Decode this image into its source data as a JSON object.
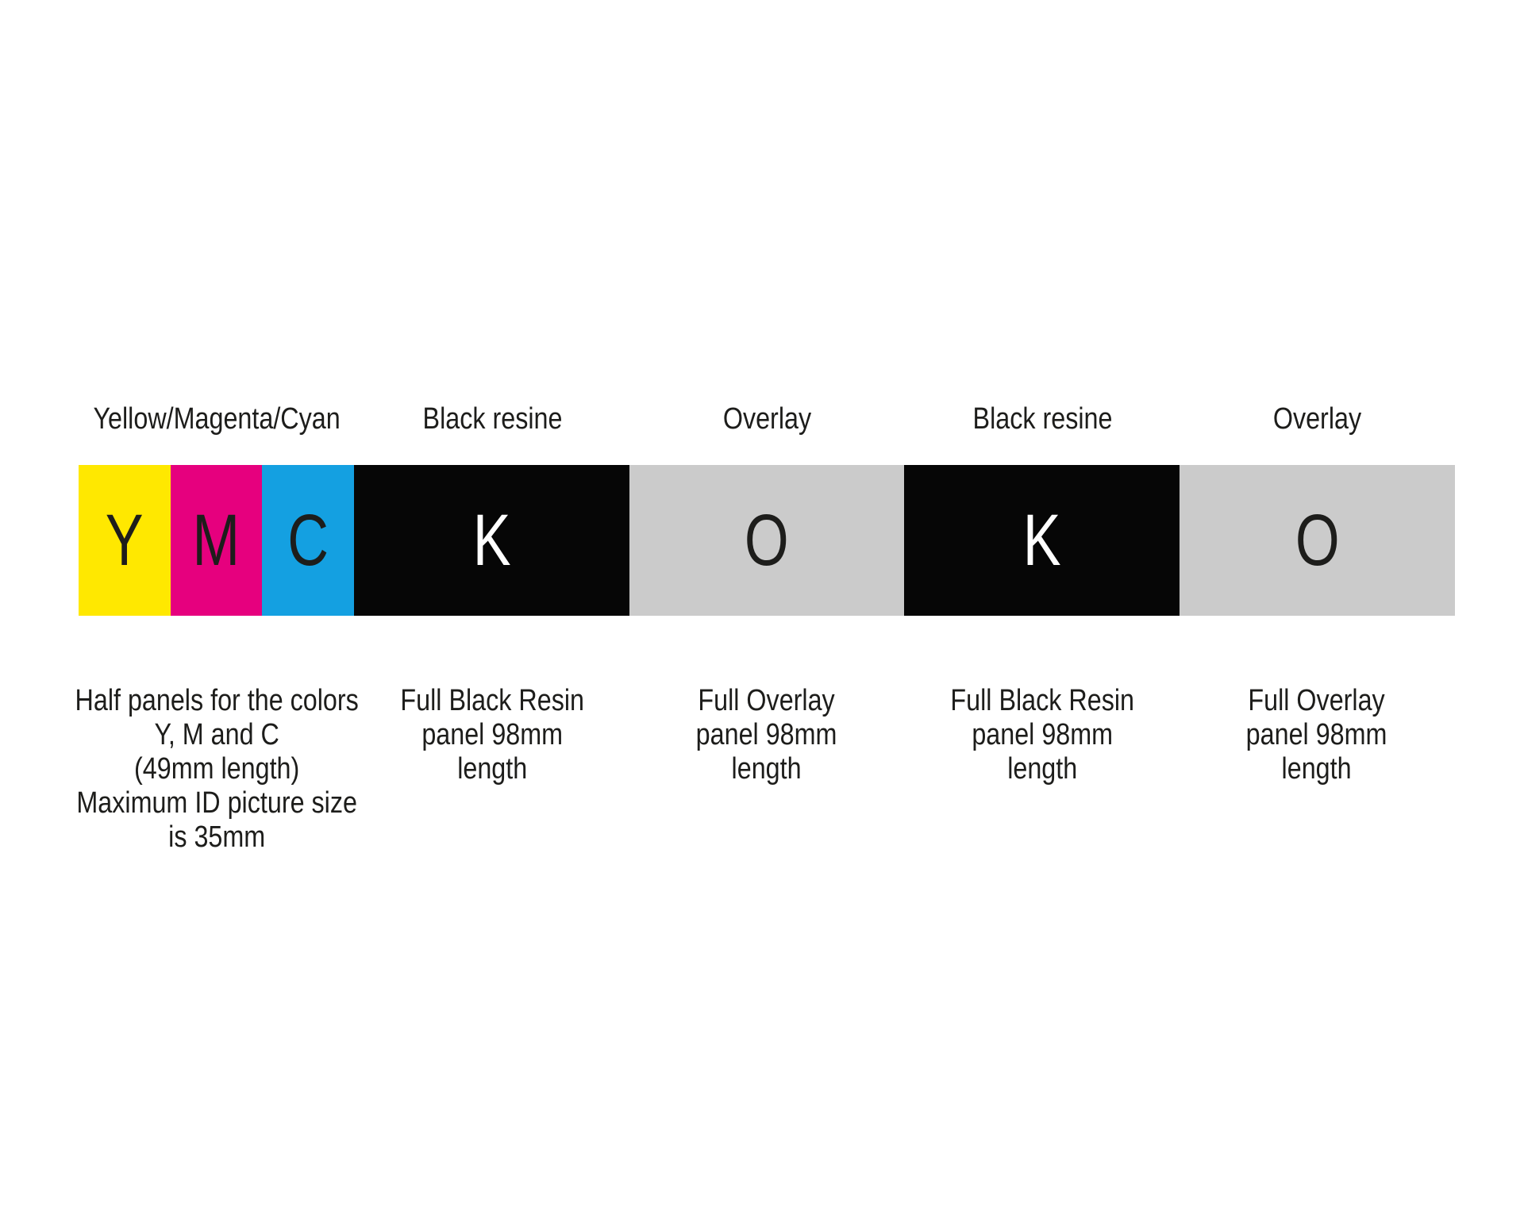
{
  "diagram": {
    "title_semantics": "YMCKOKO printer ribbon panel layout",
    "colors": {
      "yellow": "#FFE800",
      "magenta": "#E6007E",
      "cyan": "#14A0E1",
      "black": "#060606",
      "gray": "#CBCBCB",
      "text": "#1D1D1B",
      "letter_on_dark": "#FFFFFF",
      "background": "#FFFFFF"
    },
    "columns": [
      {
        "label": "Yellow/Magenta/Cyan",
        "caption": "Half panels for the colors\nY, M and C\n(49mm length)\nMaximum ID picture size\nis 35mm"
      },
      {
        "label": "Black resine",
        "caption": "Full Black Resin\npanel 98mm\nlength"
      },
      {
        "label": "Overlay",
        "caption": "Full Overlay\npanel 98mm\nlength"
      },
      {
        "label": "Black resine",
        "caption": "Full Black Resin\npanel 98mm\nlength"
      },
      {
        "label": "Overlay",
        "caption": "Full Overlay\npanel 98mm\nlength"
      }
    ],
    "segments": [
      {
        "letter": "Y",
        "name": "yellow-half-panel",
        "color": "#FFE800",
        "text_color": "#1D1D1B"
      },
      {
        "letter": "M",
        "name": "magenta-half-panel",
        "color": "#E6007E",
        "text_color": "#1D1D1B"
      },
      {
        "letter": "C",
        "name": "cyan-half-panel",
        "color": "#14A0E1",
        "text_color": "#1D1D1B"
      },
      {
        "letter": "K",
        "name": "black-resin-panel",
        "color": "#060606",
        "text_color": "#FFFFFF"
      },
      {
        "letter": "O",
        "name": "overlay-panel",
        "color": "#CBCBCB",
        "text_color": "#1D1D1B"
      },
      {
        "letter": "K",
        "name": "black-resin-panel",
        "color": "#060606",
        "text_color": "#FFFFFF"
      },
      {
        "letter": "O",
        "name": "overlay-panel",
        "color": "#CBCBCB",
        "text_color": "#1D1D1B"
      }
    ]
  }
}
